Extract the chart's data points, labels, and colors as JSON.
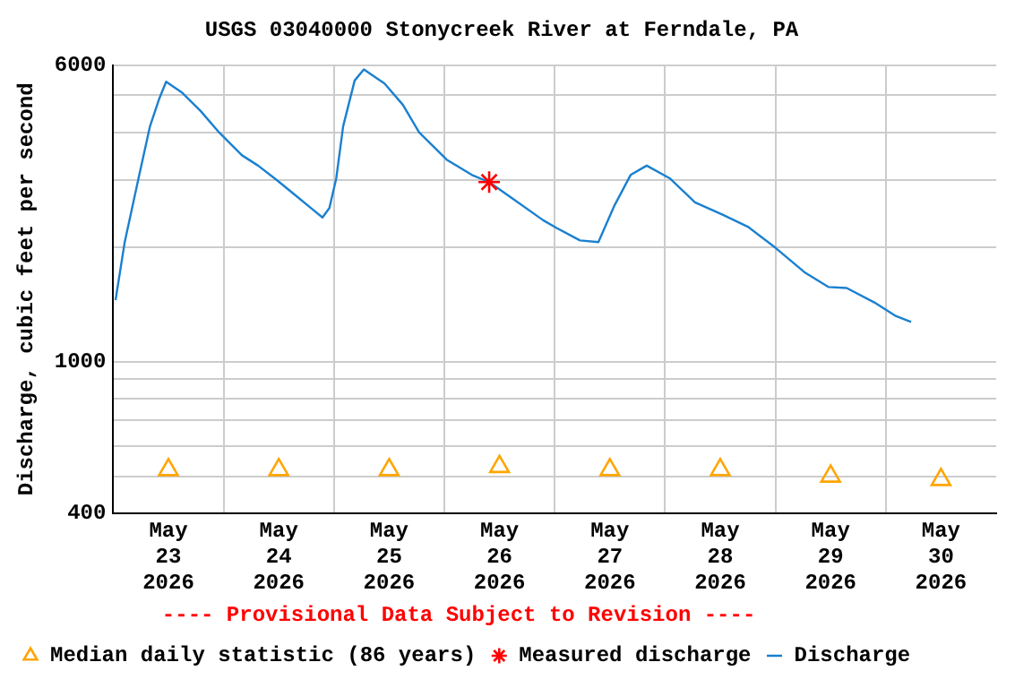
{
  "chart_data": {
    "type": "line",
    "title": "USGS 03040000 Stonycreek River at Ferndale, PA",
    "ylabel": "Discharge, cubic feet per second",
    "log": "y",
    "grid": true,
    "legend": "bottom",
    "xlim": [
      "2026-05-23T00:00",
      "2026-05-31T00:00"
    ],
    "xticks": [
      {
        "value": "2026-05-23T12:00",
        "label": "May 23 2026"
      },
      {
        "value": "2026-05-24T00:00",
        "label": null
      },
      {
        "value": "2026-05-24T12:00",
        "label": "May 24 2026"
      },
      {
        "value": "2026-05-25T00:00",
        "label": null
      },
      {
        "value": "2026-05-25T12:00",
        "label": "May 25 2026"
      },
      {
        "value": "2026-05-26T00:00",
        "label": null
      },
      {
        "value": "2026-05-26T12:00",
        "label": "May 26 2026"
      },
      {
        "value": "2026-05-27T00:00",
        "label": null
      },
      {
        "value": "2026-05-27T12:00",
        "label": "May 27 2026"
      },
      {
        "value": "2026-05-28T00:00",
        "label": null
      },
      {
        "value": "2026-05-28T12:00",
        "label": "May 28 2026"
      },
      {
        "value": "2026-05-29T00:00",
        "label": null
      },
      {
        "value": "2026-05-29T12:00",
        "label": "May 29 2026"
      },
      {
        "value": "2026-05-30T00:00",
        "label": null
      },
      {
        "value": "2026-05-30T12:00",
        "label": "May 30 2026"
      }
    ],
    "ylim": [
      400,
      6000
    ],
    "yticks": [
      400,
      {
        "value": 500,
        "label": null
      },
      {
        "value": 600,
        "label": null
      },
      {
        "value": 700,
        "label": null
      },
      {
        "value": 800,
        "label": null
      },
      {
        "value": 900,
        "label": null
      },
      1000,
      {
        "value": 2000,
        "label": null
      },
      {
        "value": 3000,
        "label": null
      },
      {
        "value": 4000,
        "label": null
      },
      {
        "value": 5000,
        "label": null
      },
      6000
    ],
    "annotations": [
      "---- Provisional Data Subject to Revision ----"
    ],
    "series": [
      {
        "name": "Median daily statistic (86 years)",
        "type": "scatter",
        "marker": "triangle",
        "color": "#ffa500",
        "x": [
          "2026-05-23T12:00",
          "2026-05-24T12:00",
          "2026-05-25T12:00",
          "2026-05-26T12:00",
          "2026-05-27T12:00",
          "2026-05-28T12:00",
          "2026-05-29T12:00",
          "2026-05-30T12:00"
        ],
        "values": [
          520,
          520,
          520,
          530,
          520,
          520,
          500,
          490
        ]
      },
      {
        "name": "Measured discharge",
        "type": "scatter",
        "marker": "cross",
        "color": "#ff0000",
        "x": [
          "2026-05-26T09:45"
        ],
        "values": [
          2960
        ]
      },
      {
        "name": "Discharge",
        "marker": "none",
        "color": "#1a80d0",
        "x": [
          "2026-05-23T00:30",
          "2026-05-23T02:30",
          "2026-05-23T05:30",
          "2026-05-23T08:00",
          "2026-05-23T10:00",
          "2026-05-23T11:30",
          "2026-05-23T15:00",
          "2026-05-23T19:00",
          "2026-05-23T23:00",
          "2026-05-24T04:00",
          "2026-05-24T07:30",
          "2026-05-24T11:30",
          "2026-05-24T15:30",
          "2026-05-24T19:30",
          "2026-05-24T21:30",
          "2026-05-24T23:00",
          "2026-05-25T00:30",
          "2026-05-25T02:00",
          "2026-05-25T04:30",
          "2026-05-25T06:30",
          "2026-05-25T11:00",
          "2026-05-25T15:00",
          "2026-05-25T18:30",
          "2026-05-26T00:30",
          "2026-05-26T06:00",
          "2026-05-26T09:45",
          "2026-05-26T15:00",
          "2026-05-26T21:30",
          "2026-05-27T00:30",
          "2026-05-27T05:30",
          "2026-05-27T09:30",
          "2026-05-27T13:00",
          "2026-05-27T16:30",
          "2026-05-27T20:00",
          "2026-05-28T01:00",
          "2026-05-28T06:30",
          "2026-05-28T12:30",
          "2026-05-28T18:00",
          "2026-05-29T00:00",
          "2026-05-29T06:30",
          "2026-05-29T11:30",
          "2026-05-29T15:30",
          "2026-05-29T21:30",
          "2026-05-30T02:00",
          "2026-05-30T05:30"
        ],
        "values": [
          1450,
          2060,
          3030,
          4150,
          4900,
          5430,
          5080,
          4550,
          4000,
          3480,
          3270,
          3000,
          2740,
          2500,
          2390,
          2530,
          3030,
          4150,
          5470,
          5850,
          5370,
          4720,
          4000,
          3390,
          3090,
          2960,
          2670,
          2350,
          2240,
          2080,
          2060,
          2570,
          3090,
          3270,
          3030,
          2620,
          2430,
          2260,
          1990,
          1710,
          1570,
          1560,
          1430,
          1320,
          1270
        ]
      }
    ]
  }
}
